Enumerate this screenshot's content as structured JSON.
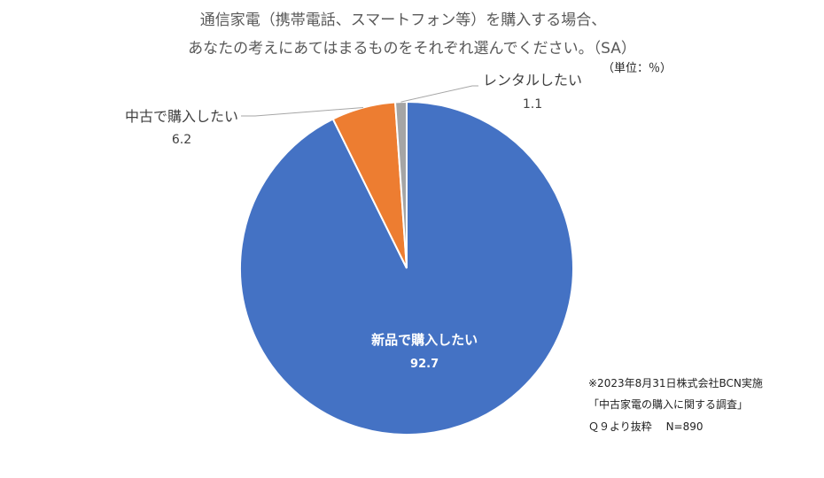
{
  "chart_data": {
    "type": "pie",
    "title": "通信家電（携帯電話、スマートフォン等）を購入する場合、",
    "subtitle": "あなたの考えにあてはまるものをそれぞれ選んでください。（SA）",
    "unit": "（単位：％）",
    "categories": [
      "新品で購入したい",
      "中古で購入したい",
      "レンタルしたい"
    ],
    "values": [
      92.7,
      6.2,
      1.1
    ],
    "colors": [
      "#4472C4",
      "#ED7D31",
      "#A5A5A5"
    ],
    "start_angle_deg": 0,
    "direction": "clockwise",
    "labels_inside": [
      true,
      false,
      false
    ]
  },
  "notes": [
    "※2023年8月31日株式会社BCN実施",
    "「中古家電の購入に関する調査」",
    "Ｑ９より抜粋　 N=890"
  ]
}
